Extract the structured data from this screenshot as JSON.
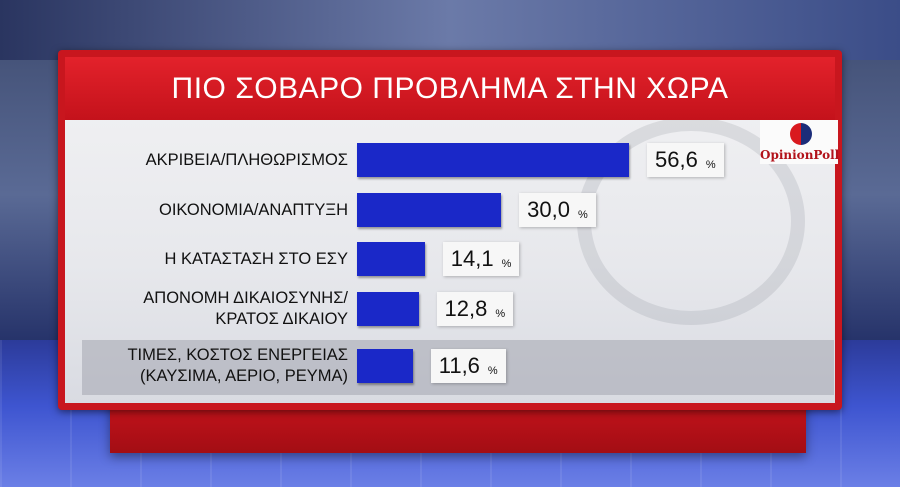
{
  "chart_data": {
    "type": "bar",
    "orientation": "horizontal",
    "title": "ΠΙΟ ΣΟΒΑΡΟ ΠΡΟΒΛΗΜΑ ΣΤΗΝ ΧΩΡΑ",
    "categories": [
      [
        "ΑΚΡΙΒΕΙΑ/ΠΛΗΘΩΡΙΣΜΟΣ"
      ],
      [
        "ΟΙΚΟΝΟΜΙΑ/ΑΝΑΠΤΥΞΗ"
      ],
      [
        "Η ΚΑΤΑΣΤΑΣΗ ΣΤΟ ΕΣΥ"
      ],
      [
        "ΑΠΟΝΟΜΗ ΔΙΚΑΙΟΣΥΝΗΣ/",
        "ΚΡΑΤΟΣ ΔΙΚΑΙΟΥ"
      ],
      [
        "ΤΙΜΕΣ, ΚΟΣΤΟΣ ΕΝΕΡΓΕΙΑΣ",
        "(ΚΑΥΣΙΜΑ, ΑΕΡΙΟ, ΡΕΥΜΑ)"
      ]
    ],
    "values": [
      56.6,
      30.0,
      14.1,
      12.8,
      11.6
    ],
    "value_labels": [
      "56,6",
      "30,0",
      "14,1",
      "12,8",
      "11,6"
    ],
    "unit": "%",
    "bar_color": "#1a28c8",
    "xlim": [
      0,
      56.6
    ]
  },
  "logo": {
    "text": "OpinionPoll"
  },
  "colors": {
    "panel": "#c8161e",
    "title_bar": "#d81a23"
  }
}
